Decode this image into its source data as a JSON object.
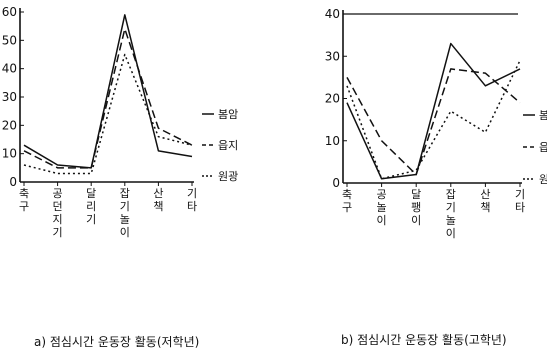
{
  "chart_data": [
    {
      "type": "line",
      "title": "a) 점심시간 운동장 활동(저학년)",
      "categories": [
        "축구",
        "공던지기",
        "달리기",
        "잡기놀이",
        "산책",
        "기타"
      ],
      "category_labels": [
        "축\n구",
        "공\n던\n지\n기",
        "달\n리\n기",
        "잡\n기\n놀\n이",
        "산\n책",
        "기\n타"
      ],
      "ylim": [
        0,
        60
      ],
      "yticks": [
        0,
        10,
        20,
        30,
        40,
        50,
        60
      ],
      "series": [
        {
          "name": "봄암",
          "style": "solid",
          "values": [
            13,
            6,
            5,
            59,
            11,
            9
          ]
        },
        {
          "name": "읍지",
          "style": "dashed",
          "values": [
            11,
            5,
            5,
            54,
            19,
            13
          ]
        },
        {
          "name": "원광",
          "style": "dotted",
          "values": [
            6,
            3,
            3,
            45,
            16,
            13
          ]
        }
      ]
    },
    {
      "type": "line",
      "title": "b) 점심시간 운동장 활동(고학년)",
      "categories": [
        "축구",
        "공놀이",
        "달팽이",
        "잡기놀이",
        "산책",
        "기타"
      ],
      "category_labels": [
        "축\n구",
        "공\n놀\n이",
        "달\n팽\n이",
        "잡\n기\n놀\n이",
        "산\n책",
        "기\n타"
      ],
      "ylim": [
        0,
        40
      ],
      "yticks": [
        0,
        10,
        20,
        30,
        40
      ],
      "series": [
        {
          "name": "봄암",
          "style": "solid",
          "values": [
            19,
            1,
            2,
            33,
            23,
            27
          ]
        },
        {
          "name": "읍지",
          "style": "dashed",
          "values": [
            25,
            10,
            2,
            27,
            26,
            19
          ]
        },
        {
          "name": "원광",
          "style": "dotted",
          "values": [
            23,
            1,
            3,
            17,
            12,
            29
          ]
        }
      ]
    }
  ]
}
